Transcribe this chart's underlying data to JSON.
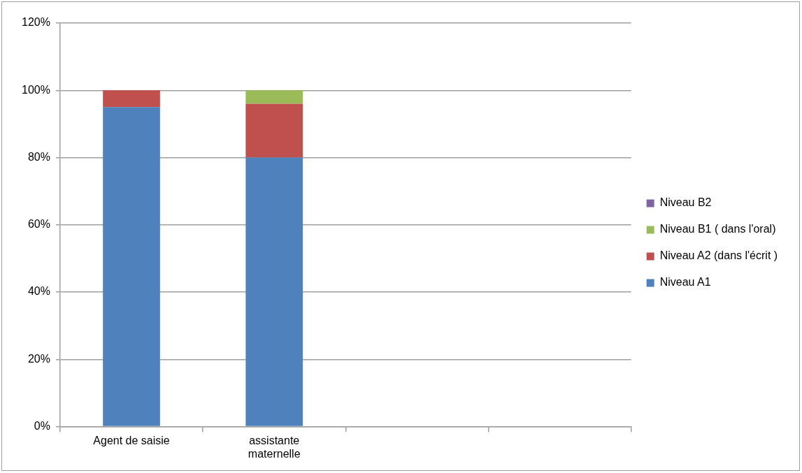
{
  "chart_data": {
    "type": "bar",
    "stacked": true,
    "categories": [
      "Agent de saisie",
      "assistante maternelle",
      null,
      null
    ],
    "series": [
      {
        "name": "Niveau A1",
        "color": "#4f81bd",
        "values": [
          95,
          80,
          null,
          null
        ]
      },
      {
        "name": "Niveau A2 (dans l'écrit )",
        "color": "#c0504d",
        "values": [
          5,
          16,
          null,
          null
        ]
      },
      {
        "name": "Niveau B1 ( dans l'oral)",
        "color": "#9bbb59",
        "values": [
          0,
          4,
          null,
          null
        ]
      },
      {
        "name": "Niveau B2",
        "color": "#8064a2",
        "values": [
          0,
          0,
          null,
          null
        ]
      }
    ],
    "ylim": [
      0,
      120
    ],
    "yticks": [
      {
        "value": 0,
        "label": "0%"
      },
      {
        "value": 20,
        "label": "20%"
      },
      {
        "value": 40,
        "label": "40%"
      },
      {
        "value": 60,
        "label": "60%"
      },
      {
        "value": 80,
        "label": "80%"
      },
      {
        "value": 100,
        "label": "100%"
      },
      {
        "value": 120,
        "label": "120%"
      }
    ],
    "grid": "y",
    "legend": "right"
  }
}
